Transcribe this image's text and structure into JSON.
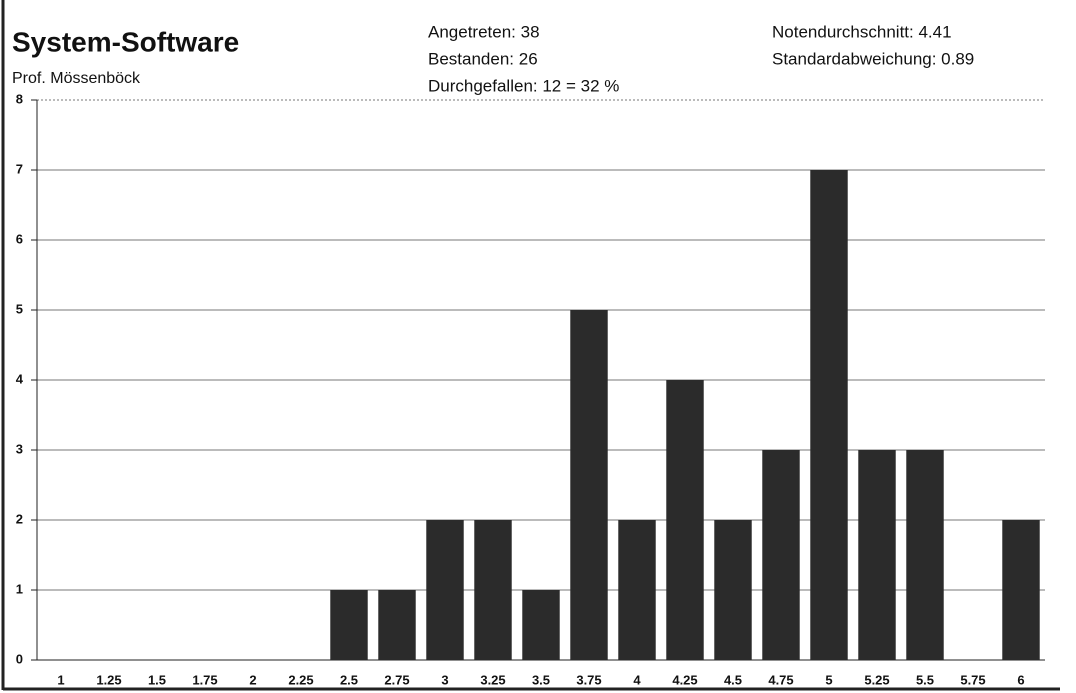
{
  "chart_data": {
    "type": "bar",
    "title": "System-Software",
    "subtitle": "Prof. Mössenböck",
    "annotations": [
      "Angetreten: 38",
      "Bestanden: 26",
      "Durchgefallen: 12 = 32 %",
      "Notendurchschnitt: 4.41",
      "Standardabweichung: 0.89"
    ],
    "categories": [
      "1",
      "1.25",
      "1.5",
      "1.75",
      "2",
      "2.25",
      "2.5",
      "2.75",
      "3",
      "3.25",
      "3.5",
      "3.75",
      "4",
      "4.25",
      "4.5",
      "4.75",
      "5",
      "5.25",
      "5.5",
      "5.75",
      "6"
    ],
    "values": [
      0,
      0,
      0,
      0,
      0,
      0,
      1,
      1,
      2,
      2,
      1,
      5,
      2,
      4,
      2,
      3,
      7,
      3,
      3,
      0,
      2
    ],
    "color": "#2b2b2b",
    "ylim": [
      0,
      8
    ],
    "yticks": [
      0,
      1,
      2,
      3,
      4,
      5,
      6,
      7,
      8
    ],
    "grid": true
  }
}
